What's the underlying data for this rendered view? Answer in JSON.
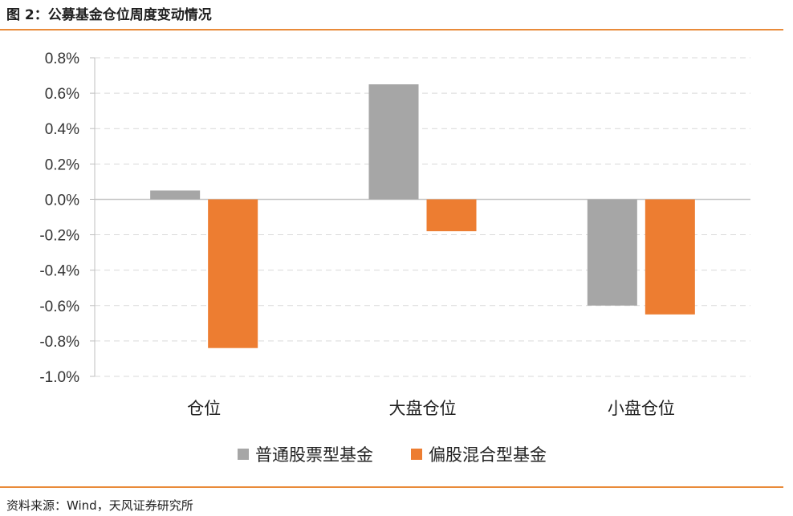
{
  "header": {
    "title": "图 2：公募基金仓位周度变动情况"
  },
  "footer": {
    "source": "资料来源：Wind，天风证券研究所"
  },
  "colors": {
    "accent_rule": "#e98b3a",
    "series_gray": "#a6a6a6",
    "series_orange": "#ed7d31",
    "grid": "#d9d9d9"
  },
  "chart_data": {
    "type": "bar",
    "categories": [
      "仓位",
      "大盘仓位",
      "小盘仓位"
    ],
    "series": [
      {
        "name": "普通股票型基金",
        "color": "#a6a6a6",
        "values": [
          0.05,
          0.65,
          -0.6
        ]
      },
      {
        "name": "偏股混合型基金",
        "color": "#ed7d31",
        "values": [
          -0.84,
          -0.18,
          -0.65
        ]
      }
    ],
    "ylim": [
      -1.0,
      0.8
    ],
    "yticks": [
      "0.8%",
      "0.6%",
      "0.4%",
      "0.2%",
      "0.0%",
      "-0.2%",
      "-0.4%",
      "-0.6%",
      "-0.8%",
      "-1.0%"
    ],
    "ytick_values": [
      0.8,
      0.6,
      0.4,
      0.2,
      0.0,
      -0.2,
      -0.4,
      -0.6,
      -0.8,
      -1.0
    ],
    "grid": true,
    "legend_position": "bottom"
  }
}
